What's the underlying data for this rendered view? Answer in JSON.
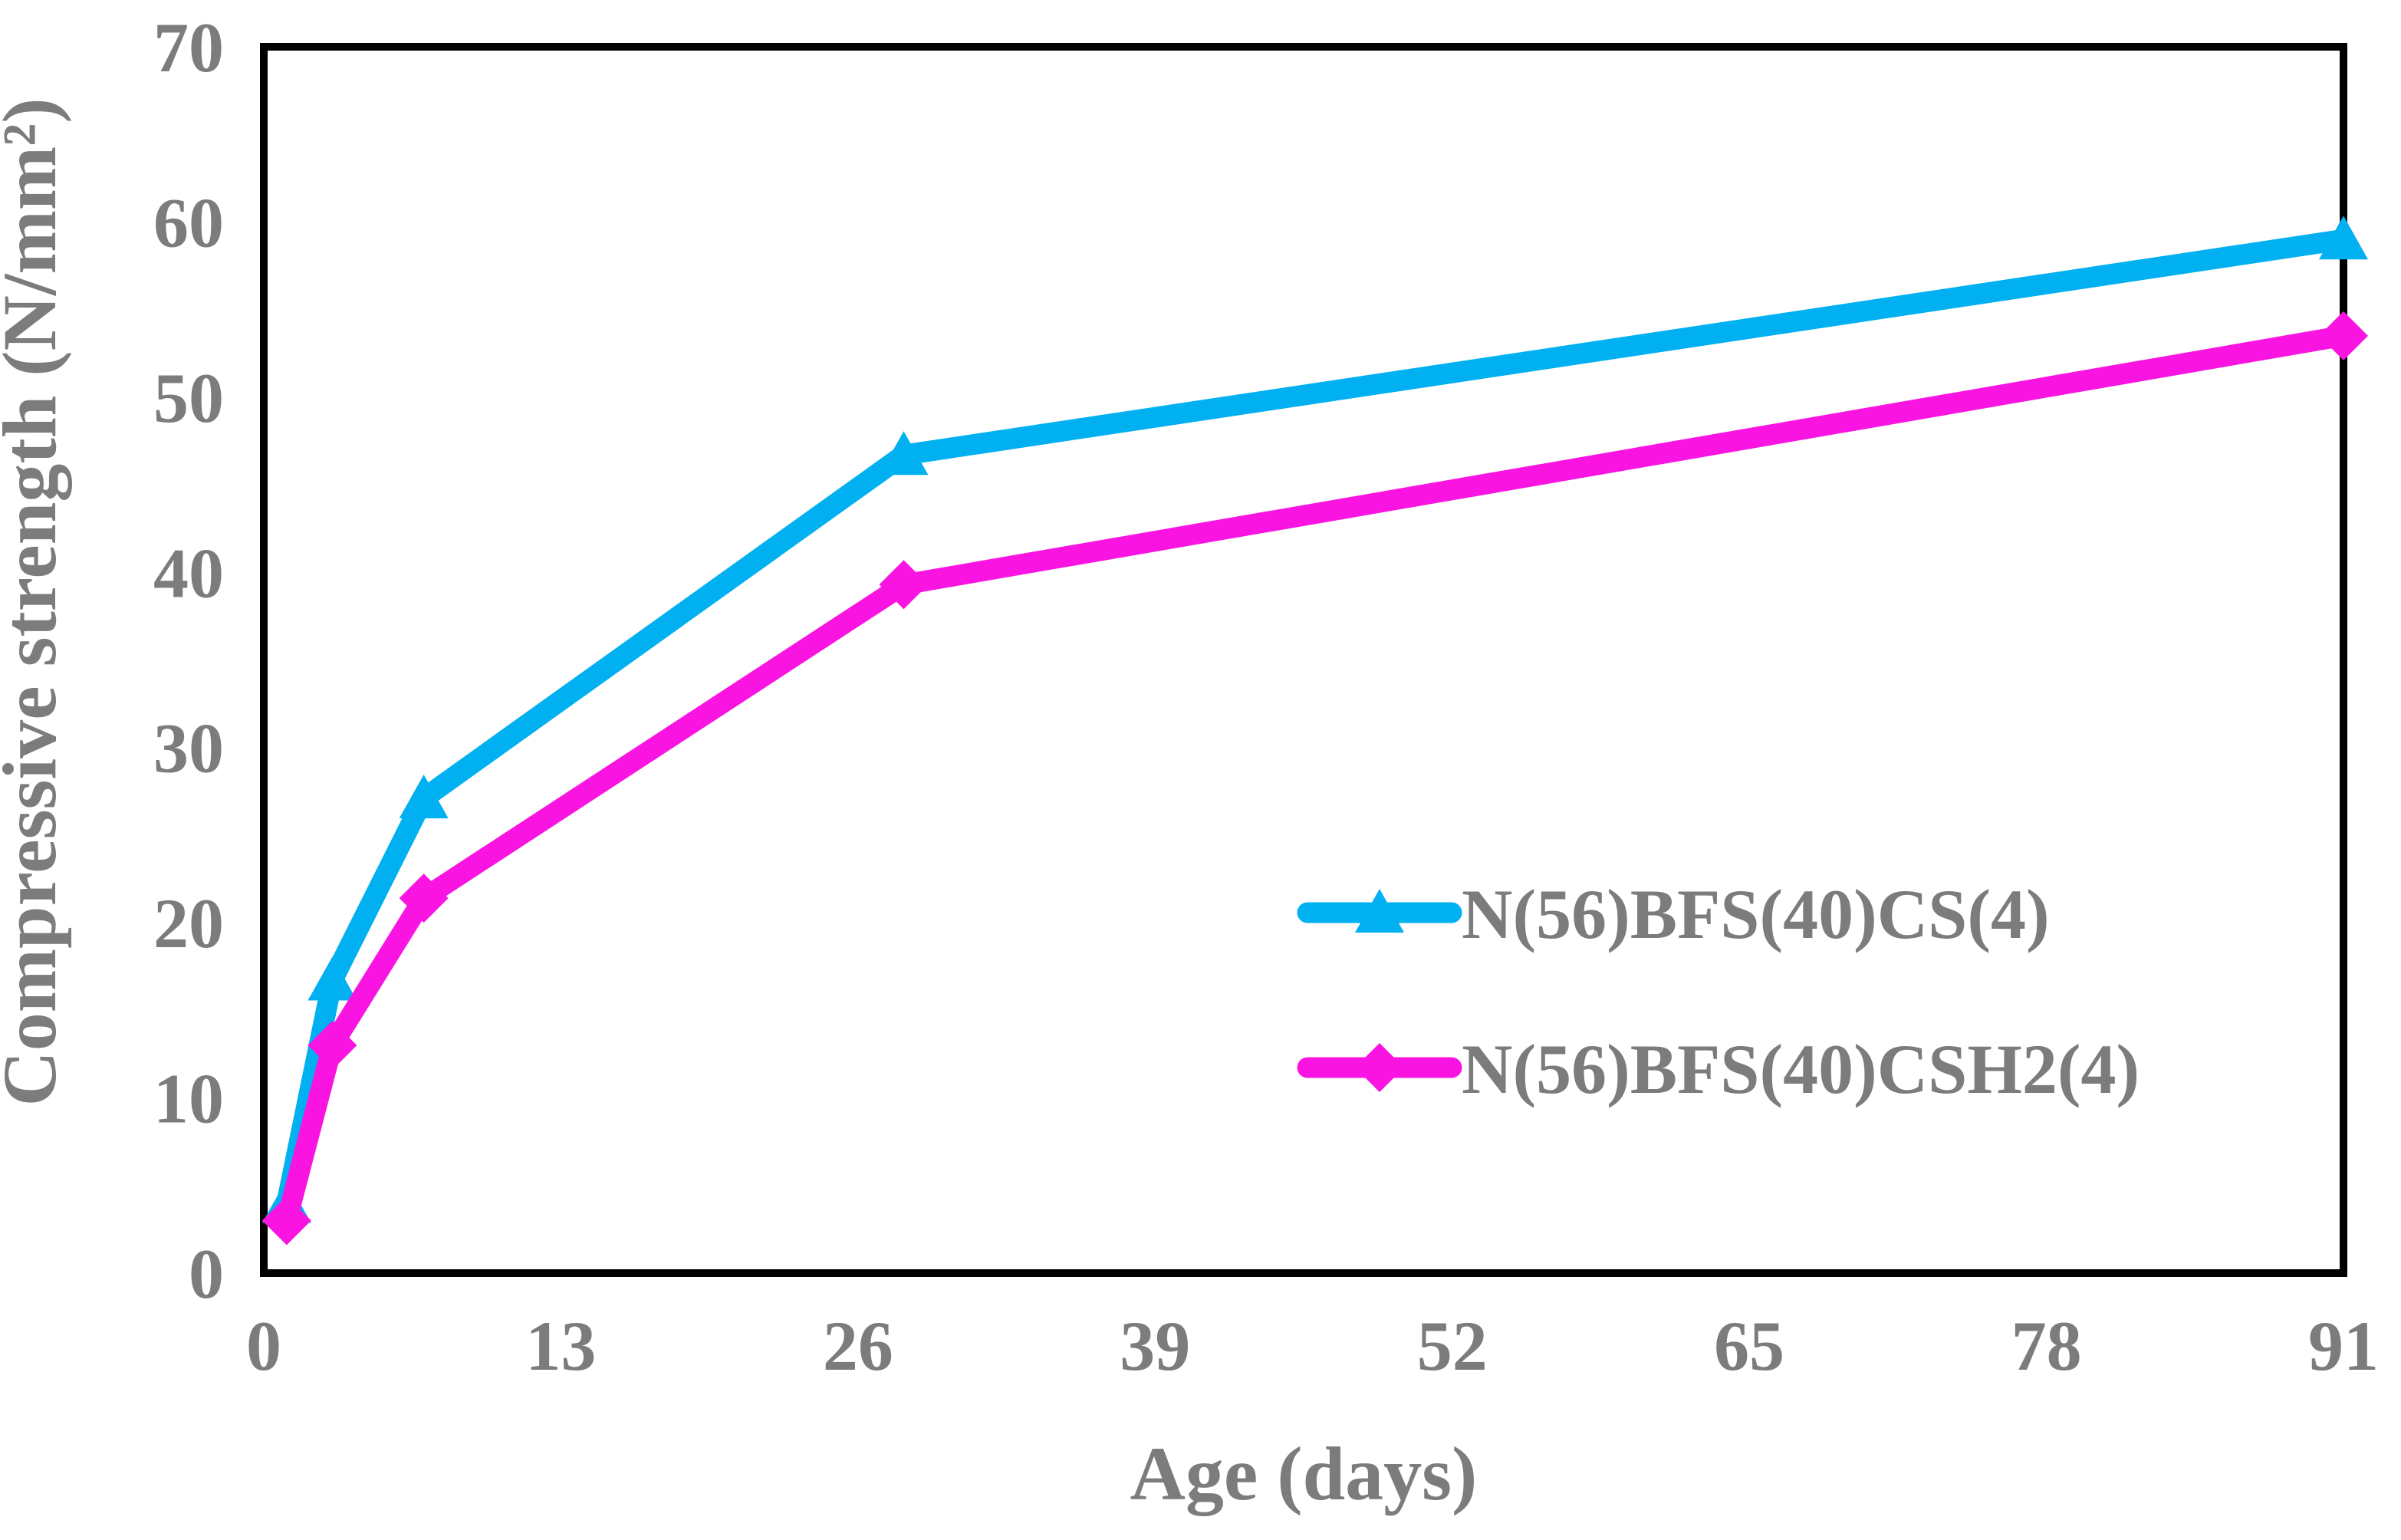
{
  "figure": {
    "background_color": "#FFFFFF",
    "frame_color": "#000000",
    "label_color": "#7C7C7C"
  },
  "chart_data": {
    "type": "line",
    "title": "",
    "xlabel": "Age (days)",
    "ylabel": "Compressive strength (N/mm²)",
    "xlim": [
      0,
      91
    ],
    "ylim": [
      0,
      70
    ],
    "x_ticks": [
      0,
      13,
      26,
      39,
      52,
      65,
      78,
      91
    ],
    "y_ticks": [
      0,
      10,
      20,
      30,
      40,
      50,
      60,
      70
    ],
    "grid": false,
    "legend_position": "inside-right-middle",
    "x": [
      1,
      3,
      7,
      28,
      91
    ],
    "series": [
      {
        "name": "N(56)BFS(40)CS(4)",
        "color": "#00B0F0",
        "marker": "triangle",
        "values": [
          4.0,
          16.7,
          27.1,
          46.7,
          59.0
        ]
      },
      {
        "name": "N(56)BFS(40)CSH2(4)",
        "color": "#FA14E1",
        "marker": "diamond",
        "values": [
          3.0,
          13.0,
          21.4,
          39.3,
          53.5
        ]
      }
    ]
  }
}
